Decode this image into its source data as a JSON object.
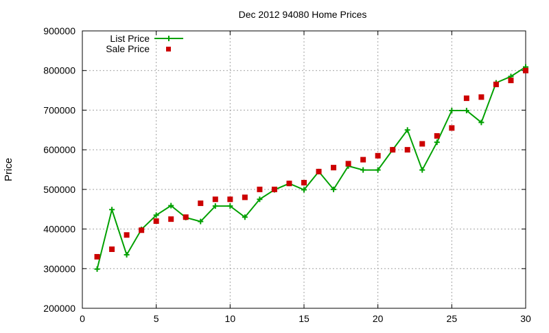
{
  "chart_data": {
    "type": "line",
    "title": "Dec 2012 94080 Home Prices",
    "xlabel": "",
    "ylabel": "Price",
    "xlim": [
      0,
      30
    ],
    "ylim": [
      200000,
      900000
    ],
    "xticks": [
      0,
      5,
      10,
      15,
      20,
      25,
      30
    ],
    "yticks": [
      200000,
      300000,
      400000,
      500000,
      600000,
      700000,
      800000,
      900000
    ],
    "grid": true,
    "legend": "top-left",
    "x": [
      1,
      2,
      3,
      4,
      5,
      6,
      7,
      8,
      9,
      10,
      11,
      12,
      13,
      14,
      15,
      16,
      17,
      18,
      19,
      20,
      21,
      22,
      23,
      24,
      25,
      26,
      27,
      28,
      29,
      30
    ],
    "series": [
      {
        "name": "List Price",
        "style": "line-plus",
        "color": "#00a000",
        "values": [
          299000,
          449000,
          335000,
          399000,
          435000,
          459000,
          429000,
          419000,
          458000,
          458000,
          430000,
          475000,
          499000,
          515000,
          499000,
          545000,
          500000,
          559000,
          549000,
          549000,
          600000,
          650000,
          549000,
          619000,
          699000,
          699000,
          669000,
          769000,
          785000,
          809000
        ]
      },
      {
        "name": "Sale Price",
        "style": "square-points",
        "color": "#cc0000",
        "values": [
          330000,
          349000,
          385000,
          397000,
          420000,
          425000,
          430000,
          465000,
          475000,
          475000,
          480000,
          500000,
          500000,
          515000,
          517000,
          545000,
          555000,
          565000,
          575000,
          585000,
          600000,
          600000,
          615000,
          635000,
          655000,
          730000,
          733000,
          765000,
          775000,
          800000
        ]
      }
    ]
  }
}
